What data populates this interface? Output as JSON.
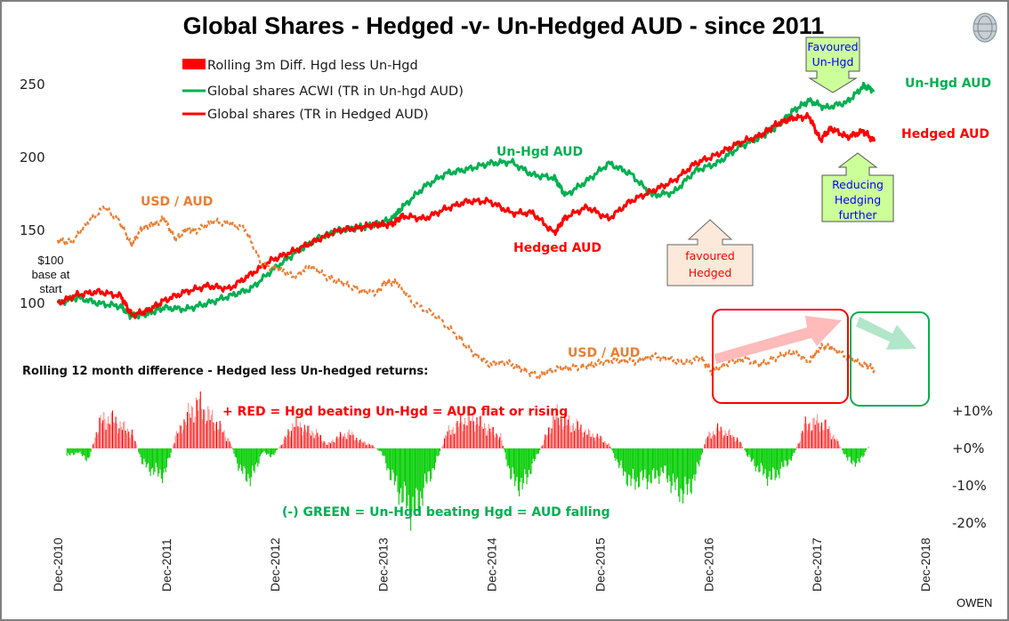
{
  "chart_data": {
    "type": "line",
    "title": "Global Shares - Hedged -v- Un-Hedged AUD - since 2011",
    "legend": [
      {
        "label": "Rolling 3m Diff.  Hgd less Un-Hgd",
        "color": "#ff0000",
        "marker": "box"
      },
      {
        "label": "Global shares ACWI (TR in Un-hgd AUD)",
        "color": "#00b050",
        "marker": "line"
      },
      {
        "label": "Global shares (TR in Hedged AUD)",
        "color": "#ff0000",
        "marker": "line"
      }
    ],
    "legend_position": "top-left",
    "x_ticks": [
      "Dec-2010",
      "Dec-2011",
      "Dec-2012",
      "Dec-2013",
      "Dec-2014",
      "Dec-2015",
      "Dec-2016",
      "Dec-2017",
      "Dec-2018"
    ],
    "xlim": [
      2010.92,
      2018.92
    ],
    "y_left": {
      "ticks": [
        "100",
        "150",
        "200",
        "250"
      ],
      "ylim": [
        100,
        250
      ]
    },
    "y_right": {
      "ticks": [
        "+10%",
        "+0%",
        "-10%",
        "-20%"
      ],
      "tick_colors": [
        "#000000",
        "#000000",
        "#ff0000",
        "#ff0000"
      ],
      "ylim": [
        -20,
        10
      ]
    },
    "series": [
      {
        "name": "Un-Hgd AUD",
        "color": "#00b050",
        "style": "solid",
        "x": [
          2010.92,
          2011.1,
          2011.3,
          2011.5,
          2011.6,
          2011.75,
          2011.9,
          2012.1,
          2012.3,
          2012.5,
          2012.7,
          2012.9,
          2013.1,
          2013.3,
          2013.5,
          2013.7,
          2013.85,
          2014.0,
          2014.1,
          2014.3,
          2014.5,
          2014.7,
          2014.9,
          2015.1,
          2015.3,
          2015.5,
          2015.6,
          2015.8,
          2016.0,
          2016.2,
          2016.4,
          2016.6,
          2016.8,
          2017.0,
          2017.2,
          2017.4,
          2017.55,
          2017.7,
          2017.85,
          2018.0,
          2018.2,
          2018.35,
          2018.45
        ],
        "y": [
          100,
          104,
          100,
          98,
          91,
          93,
          97,
          96,
          100,
          105,
          110,
          123,
          134,
          144,
          150,
          152,
          154,
          158,
          166,
          180,
          189,
          192,
          196,
          197,
          188,
          186,
          174,
          184,
          196,
          189,
          174,
          176,
          191,
          196,
          207,
          214,
          221,
          232,
          239,
          234,
          238,
          249,
          246
        ]
      },
      {
        "name": "Hedged AUD",
        "color": "#ff0000",
        "style": "solid",
        "x": [
          2010.92,
          2011.1,
          2011.3,
          2011.5,
          2011.6,
          2011.75,
          2011.9,
          2012.1,
          2012.3,
          2012.5,
          2012.7,
          2012.9,
          2013.1,
          2013.3,
          2013.5,
          2013.7,
          2013.85,
          2014.0,
          2014.1,
          2014.3,
          2014.5,
          2014.7,
          2014.9,
          2015.1,
          2015.3,
          2015.5,
          2015.6,
          2015.8,
          2016.0,
          2016.2,
          2016.4,
          2016.6,
          2016.8,
          2017.0,
          2017.2,
          2017.4,
          2017.55,
          2017.7,
          2017.85,
          2017.95,
          2018.05,
          2018.2,
          2018.35,
          2018.45
        ],
        "y": [
          100,
          106,
          108,
          105,
          92,
          95,
          102,
          108,
          112,
          110,
          120,
          130,
          136,
          143,
          150,
          152,
          154,
          154,
          160,
          158,
          165,
          170,
          170,
          162,
          162,
          148,
          159,
          166,
          158,
          170,
          177,
          184,
          196,
          202,
          210,
          215,
          223,
          227,
          228,
          212,
          220,
          214,
          218,
          211
        ]
      },
      {
        "name": "USD / AUD",
        "color": "#ed7d31",
        "style": "dashed",
        "x": [
          2010.92,
          2011.05,
          2011.2,
          2011.35,
          2011.5,
          2011.6,
          2011.7,
          2011.8,
          2011.9,
          2012.0,
          2012.1,
          2012.2,
          2012.35,
          2012.5,
          2012.65,
          2012.8,
          2012.95,
          2013.1,
          2013.25,
          2013.4,
          2013.55,
          2013.7,
          2013.85,
          2013.95,
          2014.05,
          2014.2,
          2014.4,
          2014.6,
          2014.75,
          2014.9,
          2015.05,
          2015.2,
          2015.35,
          2015.5,
          2015.65,
          2015.8,
          2015.95,
          2016.1,
          2016.25,
          2016.4,
          2016.55,
          2016.7,
          2016.85,
          2016.95,
          2017.1,
          2017.25,
          2017.4,
          2017.55,
          2017.7,
          2017.85,
          2017.95,
          2018.05,
          2018.2,
          2018.35,
          2018.45
        ],
        "y": [
          143,
          142,
          156,
          166,
          155,
          140,
          152,
          154,
          158,
          144,
          150,
          150,
          156,
          155,
          151,
          126,
          124,
          118,
          126,
          118,
          114,
          109,
          107,
          115,
          114,
          100,
          92,
          78,
          66,
          58,
          60,
          55,
          50,
          55,
          56,
          57,
          60,
          61,
          60,
          64,
          62,
          59,
          63,
          53,
          59,
          62,
          58,
          63,
          67,
          60,
          70,
          70,
          63,
          58,
          55
        ]
      }
    ],
    "bars_rolling_12m_diff": {
      "name": "Rolling 12 month difference - Hedged less Un-hedged returns",
      "positive_color": "#ff0000",
      "negative_color": "#00cc00",
      "x": [
        2011.0,
        2011.1,
        2011.2,
        2011.3,
        2011.4,
        2011.5,
        2011.6,
        2011.7,
        2011.8,
        2011.9,
        2012.0,
        2012.1,
        2012.2,
        2012.3,
        2012.4,
        2012.5,
        2012.6,
        2012.7,
        2012.8,
        2012.9,
        2013.0,
        2013.1,
        2013.2,
        2013.3,
        2013.4,
        2013.5,
        2013.6,
        2013.7,
        2013.8,
        2013.9,
        2014.0,
        2014.1,
        2014.2,
        2014.3,
        2014.4,
        2014.5,
        2014.6,
        2014.7,
        2014.8,
        2014.9,
        2015.0,
        2015.1,
        2015.2,
        2015.3,
        2015.4,
        2015.5,
        2015.6,
        2015.7,
        2015.8,
        2015.9,
        2016.0,
        2016.1,
        2016.2,
        2016.3,
        2016.4,
        2016.5,
        2016.6,
        2016.7,
        2016.8,
        2016.9,
        2017.0,
        2017.1,
        2017.2,
        2017.3,
        2017.4,
        2017.5,
        2017.6,
        2017.7,
        2017.8,
        2017.9,
        2018.0,
        2018.1,
        2018.2,
        2018.3,
        2018.4
      ],
      "values": [
        -2,
        -1,
        -3,
        7,
        8,
        6,
        4,
        -4,
        -6,
        -7,
        3,
        8,
        12,
        9,
        6,
        2,
        -6,
        -8,
        -1,
        -2,
        2,
        7,
        5,
        4,
        1,
        3,
        4,
        2,
        1,
        -1,
        -8,
        -13,
        -17,
        -10,
        -4,
        4,
        6,
        8,
        7,
        5,
        3,
        -8,
        -10,
        -4,
        2,
        9,
        7,
        6,
        4,
        3,
        1,
        -5,
        -9,
        -8,
        -8,
        -6,
        -10,
        -12,
        -7,
        3,
        5,
        4,
        2,
        -3,
        -6,
        -8,
        -5,
        -2,
        6,
        7,
        6,
        2,
        -3,
        -4,
        1
      ]
    },
    "annotations": {
      "usd_aud_label_1": "USD / AUD",
      "usd_aud_label_2": "USD / AUD",
      "unhgd_label_mid": "Un-Hgd AUD",
      "hedged_label_mid": "Hedged AUD",
      "unhgd_label_end": "Un-Hgd AUD",
      "hedged_label_end": "Hedged AUD",
      "base_note": [
        "$100",
        "base at",
        "start"
      ],
      "favoured_unhgd": [
        "Favoured",
        "Un-Hgd"
      ],
      "reducing_hedging": [
        "Reducing",
        "Hedging",
        "further"
      ],
      "favoured_hedged": [
        "favoured",
        "Hedged"
      ],
      "rolling_caption": "Rolling 12 month difference - Hedged less Un-hedged returns:",
      "red_note": "+ RED = Hgd beating Un-Hgd = AUD flat or rising",
      "green_note": "(-) GREEN = Un-Hgd beating Hgd = AUD falling",
      "author": "OWEN"
    }
  },
  "colors": {
    "green": "#00b050",
    "red": "#ff0000",
    "orange": "#ed7d31",
    "callout_green_fill": "#ccff99",
    "callout_peach_fill": "#fde9d9",
    "callout_text_blue": "#0000ff"
  }
}
